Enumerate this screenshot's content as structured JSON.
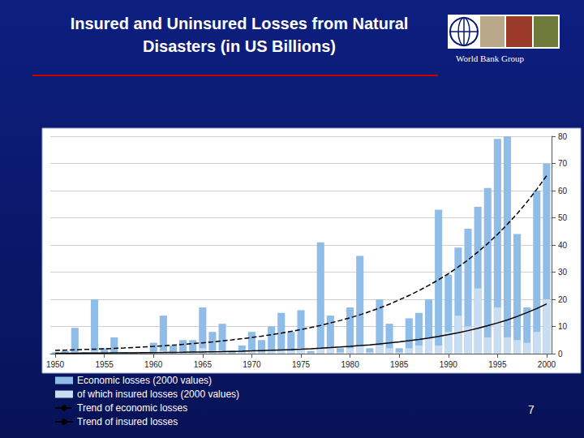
{
  "chart_data": {
    "type": "bar",
    "title": "Insured and Uninsured Losses from Natural\nDisasters (in US Billions)",
    "annotations": [
      "World Bank Group",
      "7"
    ],
    "categories": [
      "1950",
      null,
      null,
      null,
      null,
      "1955",
      null,
      null,
      null,
      null,
      "1960",
      null,
      null,
      null,
      null,
      "1965",
      null,
      null,
      null,
      null,
      "1970",
      null,
      null,
      null,
      null,
      "1975",
      null,
      null,
      null,
      null,
      "1980",
      null,
      null,
      null,
      null,
      "1985",
      null,
      null,
      null,
      null,
      "1990",
      null,
      null,
      null,
      null,
      "1995",
      null,
      null,
      null,
      null,
      "2000"
    ],
    "series": [
      {
        "name": "Economic losses (2000 values)",
        "type": "bar",
        "color": "#8fbde8",
        "values": [
          0.5,
          1,
          9.5,
          0.5,
          20,
          2,
          6,
          0.5,
          0.5,
          0.5,
          4,
          14,
          3,
          5,
          5,
          17,
          8,
          11,
          1,
          3,
          8,
          5,
          10,
          15,
          8,
          16,
          1,
          41,
          14,
          2,
          17,
          36,
          2,
          20,
          11,
          2,
          13,
          15,
          20,
          53,
          29,
          39,
          46,
          54,
          61,
          79,
          80,
          44,
          17,
          60,
          70
        ]
      },
      {
        "name": "of which insured losses (2000 values)",
        "type": "bar",
        "color": "#c9ddf2",
        "values": [
          0.1,
          0.2,
          0.5,
          0.1,
          1,
          0.2,
          0.5,
          0.1,
          0.1,
          0.1,
          0.3,
          1,
          0.3,
          0.5,
          0.5,
          2,
          1,
          1,
          0.2,
          0.5,
          1,
          0.5,
          1,
          1.5,
          1,
          2,
          0.2,
          2,
          2,
          0.5,
          2,
          3,
          0.5,
          3,
          2,
          0.5,
          2,
          3,
          6,
          3,
          8,
          14,
          10,
          24,
          6,
          17,
          6,
          5,
          4,
          8,
          20
        ]
      },
      {
        "name": "Trend of economic losses",
        "type": "line",
        "color": "#000000",
        "line_style": "dashed",
        "values": [
          1.2,
          1.3,
          1.41,
          1.53,
          1.65,
          1.79,
          1.94,
          2.1,
          2.28,
          2.47,
          2.67,
          2.89,
          3.13,
          3.4,
          3.68,
          3.98,
          4.32,
          4.68,
          5.07,
          5.49,
          5.94,
          6.44,
          6.98,
          7.56,
          8.19,
          8.87,
          9.61,
          10.4,
          11.3,
          12.2,
          13.2,
          14.3,
          15.5,
          16.8,
          18.2,
          19.8,
          21.4,
          23.2,
          25.1,
          27.2,
          29.4,
          31.9,
          34.5,
          37.4,
          40.5,
          43.9,
          47.6,
          51.5,
          55.8,
          60.5,
          65.5
        ]
      },
      {
        "name": "Trend of insured losses",
        "type": "line",
        "color": "#000000",
        "line_style": "solid",
        "values": [
          0.15,
          0.17,
          0.18,
          0.2,
          0.22,
          0.24,
          0.27,
          0.29,
          0.32,
          0.36,
          0.39,
          0.43,
          0.48,
          0.52,
          0.58,
          0.63,
          0.7,
          0.77,
          0.85,
          0.93,
          1.02,
          1.13,
          1.24,
          1.37,
          1.5,
          1.65,
          1.82,
          2.01,
          2.21,
          2.43,
          2.68,
          2.95,
          3.24,
          3.57,
          3.93,
          4.33,
          4.76,
          5.24,
          5.77,
          6.35,
          6.99,
          7.69,
          8.47,
          9.32,
          10.3,
          11.3,
          12.4,
          13.7,
          15.1,
          16.6,
          18.3
        ]
      }
    ],
    "ylim": [
      0,
      80
    ],
    "yticks": [
      0,
      10,
      20,
      30,
      40,
      50,
      60,
      70,
      80
    ],
    "grid": true,
    "legend": "bottom-left"
  }
}
